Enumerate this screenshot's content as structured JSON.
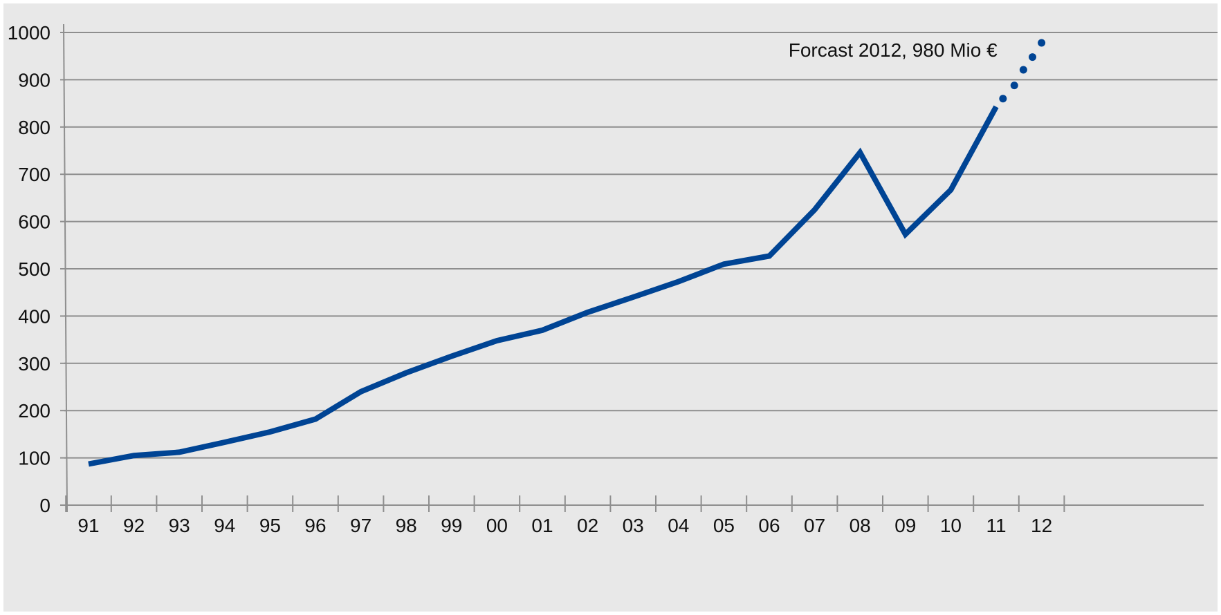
{
  "chart_data": {
    "type": "line",
    "title": "",
    "xlabel": "",
    "ylabel": "",
    "categories": [
      "91",
      "92",
      "93",
      "94",
      "95",
      "96",
      "97",
      "98",
      "99",
      "00",
      "01",
      "02",
      "03",
      "04",
      "05",
      "06",
      "07",
      "08",
      "09",
      "10",
      "11",
      "12"
    ],
    "ylim": [
      0,
      1000
    ],
    "yticks": [
      0,
      100,
      200,
      300,
      400,
      500,
      600,
      700,
      800,
      900,
      1000
    ],
    "grid": true,
    "legend": "none",
    "series": [
      {
        "values": [
          [
            0,
            87
          ],
          [
            1,
            105
          ],
          [
            2,
            112
          ],
          [
            3,
            133
          ],
          [
            4,
            155
          ],
          [
            5,
            182
          ],
          [
            6,
            240
          ],
          [
            7,
            280
          ],
          [
            8,
            315
          ],
          [
            9,
            348
          ],
          [
            10,
            370
          ],
          [
            11,
            408
          ],
          [
            12,
            440
          ],
          [
            13,
            473
          ],
          [
            14,
            510
          ],
          [
            15,
            527
          ],
          [
            16,
            625
          ],
          [
            17,
            746
          ],
          [
            18,
            573
          ],
          [
            19,
            667
          ],
          [
            20,
            843
          ]
        ],
        "color": "#004494",
        "style": "solid"
      },
      {
        "values": [
          [
            20.15,
            860
          ],
          [
            20.4,
            888
          ],
          [
            20.6,
            921
          ],
          [
            20.8,
            948
          ],
          [
            21.0,
            978
          ]
        ],
        "color": "#004494",
        "style": "dots"
      }
    ],
    "annotations": [
      {
        "text": "Forcast 2012,  980 Mio €",
        "x": 20.3,
        "y": 978
      }
    ],
    "colors": {
      "background": "#e8e8e8",
      "grid": "#8e8e8e",
      "axis": "#8e8e8e",
      "line": "#004494",
      "text": "#111111"
    }
  }
}
